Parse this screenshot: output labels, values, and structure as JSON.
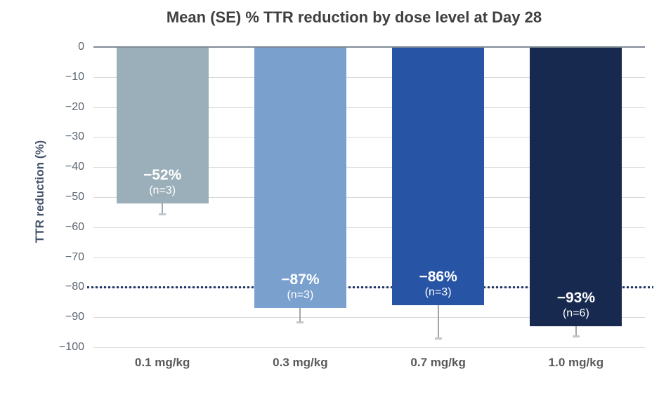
{
  "chart_data": {
    "type": "bar",
    "title": "Mean (SE) % TTR reduction by dose level at Day 28",
    "xlabel": "",
    "ylabel": "TTR reduction (%)",
    "ylim": [
      0,
      -100
    ],
    "grid": true,
    "yticks": [
      {
        "value": 0,
        "label": "0"
      },
      {
        "value": -10,
        "label": "−10"
      },
      {
        "value": -20,
        "label": "−20"
      },
      {
        "value": -30,
        "label": "−30"
      },
      {
        "value": -40,
        "label": "−40"
      },
      {
        "value": -50,
        "label": "−50"
      },
      {
        "value": -60,
        "label": "−60"
      },
      {
        "value": -70,
        "label": "−70"
      },
      {
        "value": -80,
        "label": "−80"
      },
      {
        "value": -90,
        "label": "−90"
      },
      {
        "value": -100,
        "label": "−100"
      }
    ],
    "reference_line": {
      "value": -80,
      "style": "dotted",
      "color": "#1f3864"
    },
    "categories": [
      "0.1 mg/kg",
      "0.3 mg/kg",
      "0.7 mg/kg",
      "1.0 mg/kg"
    ],
    "bars": [
      {
        "dose": "0.1 mg/kg",
        "value": -52,
        "value_label": "−52%",
        "n": 3,
        "n_label": "(n=3)",
        "error_tip": -55.5,
        "color": "#9bafba"
      },
      {
        "dose": "0.3 mg/kg",
        "value": -87,
        "value_label": "−87%",
        "n": 3,
        "n_label": "(n=3)",
        "error_tip": -91.5,
        "color": "#7aa0ce"
      },
      {
        "dose": "0.7 mg/kg",
        "value": -86,
        "value_label": "−86%",
        "n": 3,
        "n_label": "(n=3)",
        "error_tip": -96.9,
        "color": "#2854a6"
      },
      {
        "dose": "1.0 mg/kg",
        "value": -93,
        "value_label": "−93%",
        "n": 6,
        "n_label": "(n=6)",
        "error_tip": -96.3,
        "color": "#17294f"
      }
    ],
    "colors": {
      "grid": "#d9d9d9",
      "zero_line": "#7f8b95",
      "title_text": "#404040",
      "axis_text": "#5a6470",
      "x_label_text": "#595959",
      "y_title_text": "#44546A",
      "bar_label_text": "#ffffff",
      "error_bar": "#9fa6ac"
    }
  }
}
